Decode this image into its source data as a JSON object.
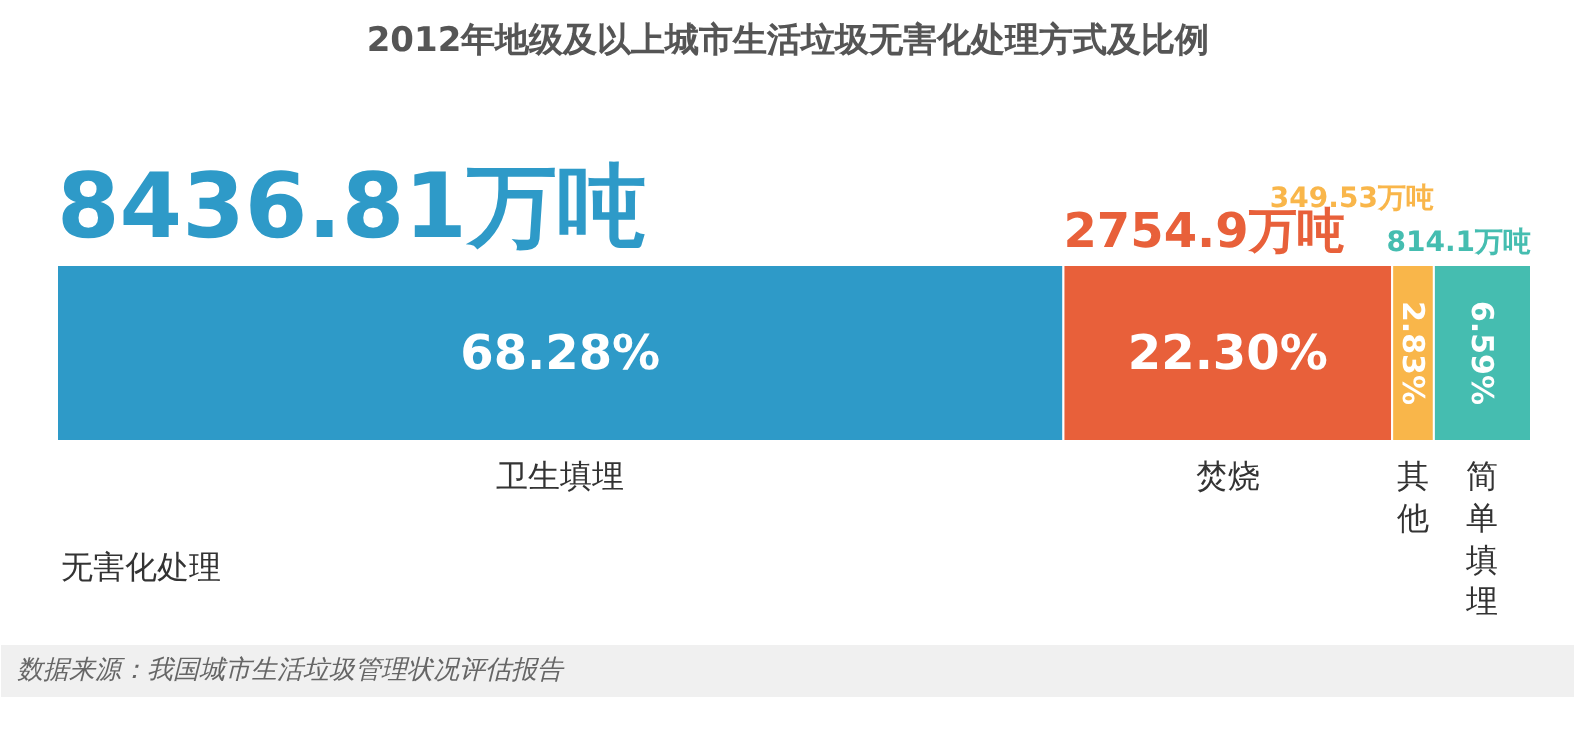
{
  "chart_data": {
    "type": "bar",
    "orientation": "horizontal",
    "stacked": true,
    "title": "2012年地级及以上城市生活垃圾无害化处理方式及比例",
    "categories": [
      null
    ],
    "series": [
      {
        "name": "卫生填埋",
        "color": "#2e9ac8",
        "values": [
          68.28
        ],
        "value_labels": [
          "68.28%"
        ]
      },
      {
        "name": "焚烧",
        "color": "#e8603a",
        "values": [
          22.3
        ],
        "value_labels": [
          "22.30%"
        ]
      },
      {
        "name": "其他",
        "color": "#f9b64a",
        "values": [
          2.83
        ],
        "value_labels": [
          "2.83%"
        ]
      },
      {
        "name": "简单填埋",
        "color": "#45bdb0",
        "values": [
          6.59
        ],
        "value_labels": [
          "6.59%"
        ]
      }
    ],
    "annotations": [
      "8436.81万吨",
      "2754.9万吨",
      "349.53万吨",
      "814.1万吨",
      "无害化处理",
      "数据来源：我国城市生活垃圾管理状况评估报告"
    ]
  }
}
